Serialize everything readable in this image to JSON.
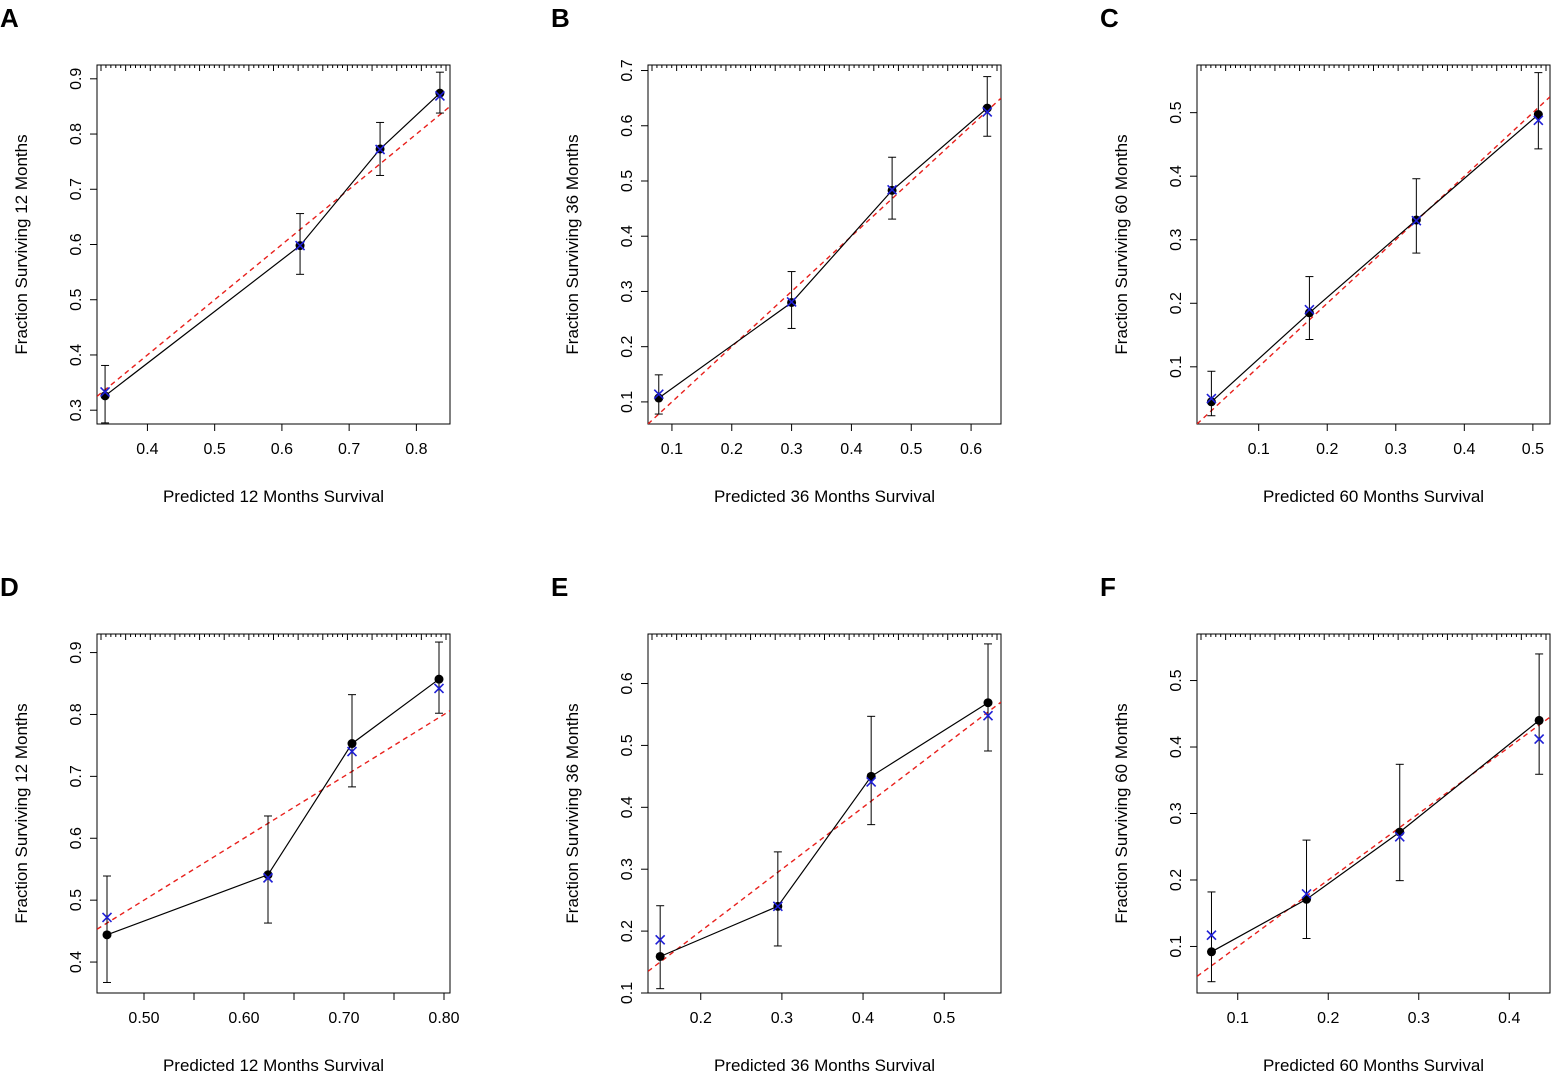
{
  "chart_data": [
    {
      "panel": "A",
      "type": "scatter",
      "xlabel": "Predicted  12 Months Survival",
      "ylabel": "Fraction Surviving 12 Months",
      "xlim": [
        0.325,
        0.85
      ],
      "ylim": [
        0.275,
        0.925
      ],
      "xticks": [
        0.4,
        0.5,
        0.6,
        0.7,
        0.8
      ],
      "xtick_labels": [
        "0.4",
        "0.5",
        "0.6",
        "0.7",
        "0.8"
      ],
      "yticks": [
        0.3,
        0.4,
        0.5,
        0.6,
        0.7,
        0.8,
        0.9
      ],
      "ytick_labels": [
        "0.3",
        "0.4",
        "0.5",
        "0.6",
        "0.7",
        "0.8",
        "0.9"
      ],
      "ideal": [
        [
          0.325,
          0.325
        ],
        [
          0.85,
          0.85
        ]
      ],
      "predicted": [
        0.337,
        0.627,
        0.746,
        0.835
      ],
      "observed": [
        0.326,
        0.598,
        0.773,
        0.874
      ],
      "lower": [
        0.277,
        0.546,
        0.725,
        0.838
      ],
      "upper": [
        0.381,
        0.656,
        0.821,
        0.912
      ],
      "corrected": [
        0.333,
        0.598,
        0.772,
        0.869
      ]
    },
    {
      "panel": "B",
      "type": "scatter",
      "xlabel": "Predicted  36 Months Survival",
      "ylabel": "Fraction Surviving 36 Months",
      "xlim": [
        0.06,
        0.65
      ],
      "ylim": [
        0.06,
        0.71
      ],
      "xticks": [
        0.1,
        0.2,
        0.3,
        0.4,
        0.5,
        0.6
      ],
      "xtick_labels": [
        "0.1",
        "0.2",
        "0.3",
        "0.4",
        "0.5",
        "0.6"
      ],
      "yticks": [
        0.1,
        0.2,
        0.3,
        0.4,
        0.5,
        0.6,
        0.7
      ],
      "ytick_labels": [
        "0.1",
        "0.2",
        "0.3",
        "0.4",
        "0.5",
        "0.6",
        "0.7"
      ],
      "ideal": [
        [
          0.06,
          0.06
        ],
        [
          0.65,
          0.65
        ]
      ],
      "predicted": [
        0.078,
        0.3,
        0.468,
        0.627
      ],
      "observed": [
        0.107,
        0.28,
        0.483,
        0.632
      ],
      "lower": [
        0.078,
        0.233,
        0.431,
        0.581
      ],
      "upper": [
        0.149,
        0.336,
        0.543,
        0.689
      ],
      "corrected": [
        0.114,
        0.281,
        0.484,
        0.625
      ]
    },
    {
      "panel": "C",
      "type": "scatter",
      "xlabel": "Predicted  60 Months Survival",
      "ylabel": "Fraction Surviving 60 Months",
      "xlim": [
        0.01,
        0.525
      ],
      "ylim": [
        0.01,
        0.575
      ],
      "xticks": [
        0.1,
        0.2,
        0.3,
        0.4,
        0.5
      ],
      "xtick_labels": [
        "0.1",
        "0.2",
        "0.3",
        "0.4",
        "0.5"
      ],
      "yticks": [
        0.1,
        0.2,
        0.3,
        0.4,
        0.5
      ],
      "ytick_labels": [
        "0.1",
        "0.2",
        "0.3",
        "0.4",
        "0.5"
      ],
      "ideal": [
        [
          0.01,
          0.01
        ],
        [
          0.525,
          0.525
        ]
      ],
      "predicted": [
        0.031,
        0.174,
        0.33,
        0.508
      ],
      "observed": [
        0.045,
        0.185,
        0.331,
        0.497
      ],
      "lower": [
        0.023,
        0.143,
        0.279,
        0.443
      ],
      "upper": [
        0.093,
        0.242,
        0.396,
        0.563
      ],
      "corrected": [
        0.05,
        0.19,
        0.33,
        0.488
      ]
    },
    {
      "panel": "D",
      "type": "scatter",
      "xlabel": "Predicted  12 Months Survival",
      "ylabel": "Fraction Surviving 12 Months",
      "xlim": [
        0.453,
        0.806
      ],
      "ylim": [
        0.35,
        0.93
      ],
      "xticks": [
        0.5,
        0.55,
        0.6,
        0.65,
        0.7,
        0.75,
        0.8
      ],
      "xtick_labels": [
        "0.50",
        "",
        "0.60",
        "",
        "0.70",
        "",
        "0.80"
      ],
      "yticks": [
        0.4,
        0.5,
        0.6,
        0.7,
        0.8,
        0.9
      ],
      "ytick_labels": [
        "0.4",
        "0.5",
        "0.6",
        "0.7",
        "0.8",
        "0.9"
      ],
      "ideal": [
        [
          0.453,
          0.453
        ],
        [
          0.806,
          0.806
        ]
      ],
      "predicted": [
        0.463,
        0.624,
        0.708,
        0.795
      ],
      "observed": [
        0.444,
        0.541,
        0.753,
        0.857
      ],
      "lower": [
        0.367,
        0.463,
        0.683,
        0.802
      ],
      "upper": [
        0.539,
        0.636,
        0.832,
        0.917
      ],
      "corrected": [
        0.472,
        0.536,
        0.74,
        0.842
      ]
    },
    {
      "panel": "E",
      "type": "scatter",
      "xlabel": "Predicted  36 Months Survival",
      "ylabel": "Fraction Surviving 36 Months",
      "xlim": [
        0.135,
        0.57
      ],
      "ylim": [
        0.1,
        0.68
      ],
      "xticks": [
        0.2,
        0.3,
        0.4,
        0.5
      ],
      "xtick_labels": [
        "0.2",
        "0.3",
        "0.4",
        "0.5"
      ],
      "yticks": [
        0.1,
        0.2,
        0.3,
        0.4,
        0.5,
        0.6
      ],
      "ytick_labels": [
        "0.1",
        "0.2",
        "0.3",
        "0.4",
        "0.5",
        "0.6"
      ],
      "ideal": [
        [
          0.135,
          0.135
        ],
        [
          0.57,
          0.57
        ]
      ],
      "predicted": [
        0.15,
        0.295,
        0.41,
        0.554
      ],
      "observed": [
        0.159,
        0.24,
        0.45,
        0.569
      ],
      "lower": [
        0.107,
        0.176,
        0.372,
        0.491
      ],
      "upper": [
        0.241,
        0.328,
        0.547,
        0.664
      ],
      "corrected": [
        0.186,
        0.24,
        0.441,
        0.548
      ]
    },
    {
      "panel": "F",
      "type": "scatter",
      "xlabel": "Predicted  60 Months Survival",
      "ylabel": "Fraction Surviving 60 Months",
      "xlim": [
        0.055,
        0.445
      ],
      "ylim": [
        0.03,
        0.57
      ],
      "xticks": [
        0.1,
        0.2,
        0.3,
        0.4
      ],
      "xtick_labels": [
        "0.1",
        "0.2",
        "0.3",
        "0.4"
      ],
      "yticks": [
        0.1,
        0.2,
        0.3,
        0.4,
        0.5
      ],
      "ytick_labels": [
        "0.1",
        "0.2",
        "0.3",
        "0.4",
        "0.5"
      ],
      "ideal": [
        [
          0.055,
          0.055
        ],
        [
          0.445,
          0.445
        ]
      ],
      "predicted": [
        0.071,
        0.176,
        0.279,
        0.433
      ],
      "observed": [
        0.092,
        0.171,
        0.272,
        0.44
      ],
      "lower": [
        0.047,
        0.112,
        0.199,
        0.359
      ],
      "upper": [
        0.182,
        0.26,
        0.374,
        0.54
      ],
      "corrected": [
        0.117,
        0.179,
        0.265,
        0.412
      ]
    }
  ],
  "colors": {
    "observed": "#000000",
    "corrected": "#1f1fd6",
    "ideal": "#e8201c",
    "axis": "#000000"
  }
}
